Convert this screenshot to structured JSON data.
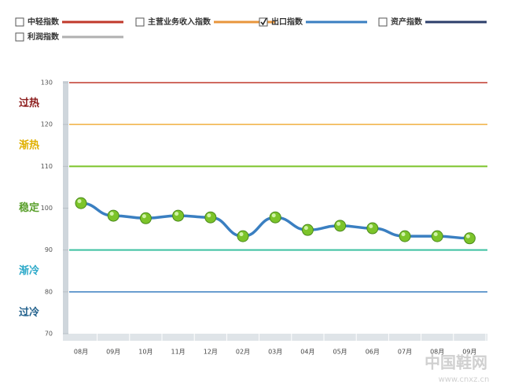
{
  "chart_data": {
    "type": "line",
    "series": [
      {
        "name": "中轻指数",
        "color": "#c0392b",
        "checked": false
      },
      {
        "name": "主营业务收入指数",
        "color": "#e8963c",
        "checked": false
      },
      {
        "name": "出口指数",
        "color": "#3a7fc1",
        "checked": true,
        "marker_color": "#7cc42a",
        "values": [
          101.2,
          98.2,
          97.6,
          98.2,
          97.8,
          93.3,
          97.8,
          94.8,
          95.8,
          95.2,
          93.3,
          93.3,
          92.8
        ]
      },
      {
        "name": "资产指数",
        "color": "#2c3e6b",
        "checked": false
      },
      {
        "name": "利润指数",
        "color": "#b0b0b0",
        "checked": false
      }
    ],
    "categories": [
      "08月",
      "09月",
      "10月",
      "11月",
      "12月",
      "02月",
      "03月",
      "04月",
      "05月",
      "06月",
      "07月",
      "08月",
      "09月"
    ],
    "ylim": [
      70,
      130
    ],
    "yticks": [
      70,
      80,
      90,
      100,
      110,
      120,
      130
    ],
    "grid": false,
    "thresholds": [
      {
        "value": 130,
        "color": "#c0392b"
      },
      {
        "value": 120,
        "color": "#f0b040"
      },
      {
        "value": 110,
        "color": "#7cc42a"
      },
      {
        "value": 90,
        "color": "#3cc0a0"
      },
      {
        "value": 80,
        "color": "#3a7fc1"
      }
    ],
    "zones": [
      {
        "from": 120,
        "to": 130,
        "label": "过热",
        "color": "#8b1a1a"
      },
      {
        "from": 110,
        "to": 120,
        "label": "渐热",
        "color": "#e0b000"
      },
      {
        "from": 90,
        "to": 110,
        "label": "稳定",
        "color": "#5aa02c"
      },
      {
        "from": 80,
        "to": 90,
        "label": "渐冷",
        "color": "#2aa8c8"
      },
      {
        "from": 70,
        "to": 80,
        "label": "过冷",
        "color": "#1f5f8b"
      }
    ]
  },
  "watermark": {
    "name": "中国鞋网",
    "url": "www.cnxz.cn"
  }
}
